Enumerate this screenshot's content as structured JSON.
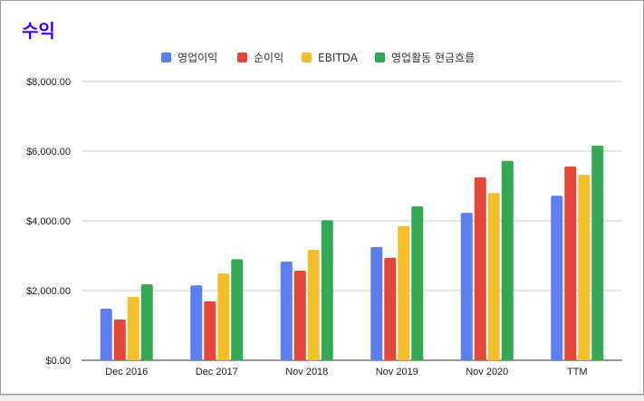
{
  "chart_data": {
    "type": "bar",
    "title": "수익",
    "categories": [
      "Dec 2016",
      "Dec 2017",
      "Nov 2018",
      "Nov 2019",
      "Nov 2020",
      "TTM"
    ],
    "series": [
      {
        "name": "영업이익",
        "color": "#5b7ff0",
        "values": [
          1480,
          2150,
          2830,
          3250,
          4230,
          4720
        ]
      },
      {
        "name": "순이익",
        "color": "#e4473a",
        "values": [
          1170,
          1690,
          2570,
          2940,
          5250,
          5560
        ]
      },
      {
        "name": "EBITDA",
        "color": "#f4bf2a",
        "values": [
          1820,
          2490,
          3170,
          3850,
          4800,
          5320
        ]
      },
      {
        "name": "영업활동 현금흐름",
        "color": "#34a853",
        "values": [
          2180,
          2900,
          4020,
          4420,
          5720,
          6160
        ]
      }
    ],
    "y_ticks": [
      "$0.00",
      "$2,000.00",
      "$4,000.00",
      "$6,000.00",
      "$8,000.00"
    ],
    "ylim": [
      0,
      8000
    ],
    "grid": true,
    "legend_position": "top"
  }
}
